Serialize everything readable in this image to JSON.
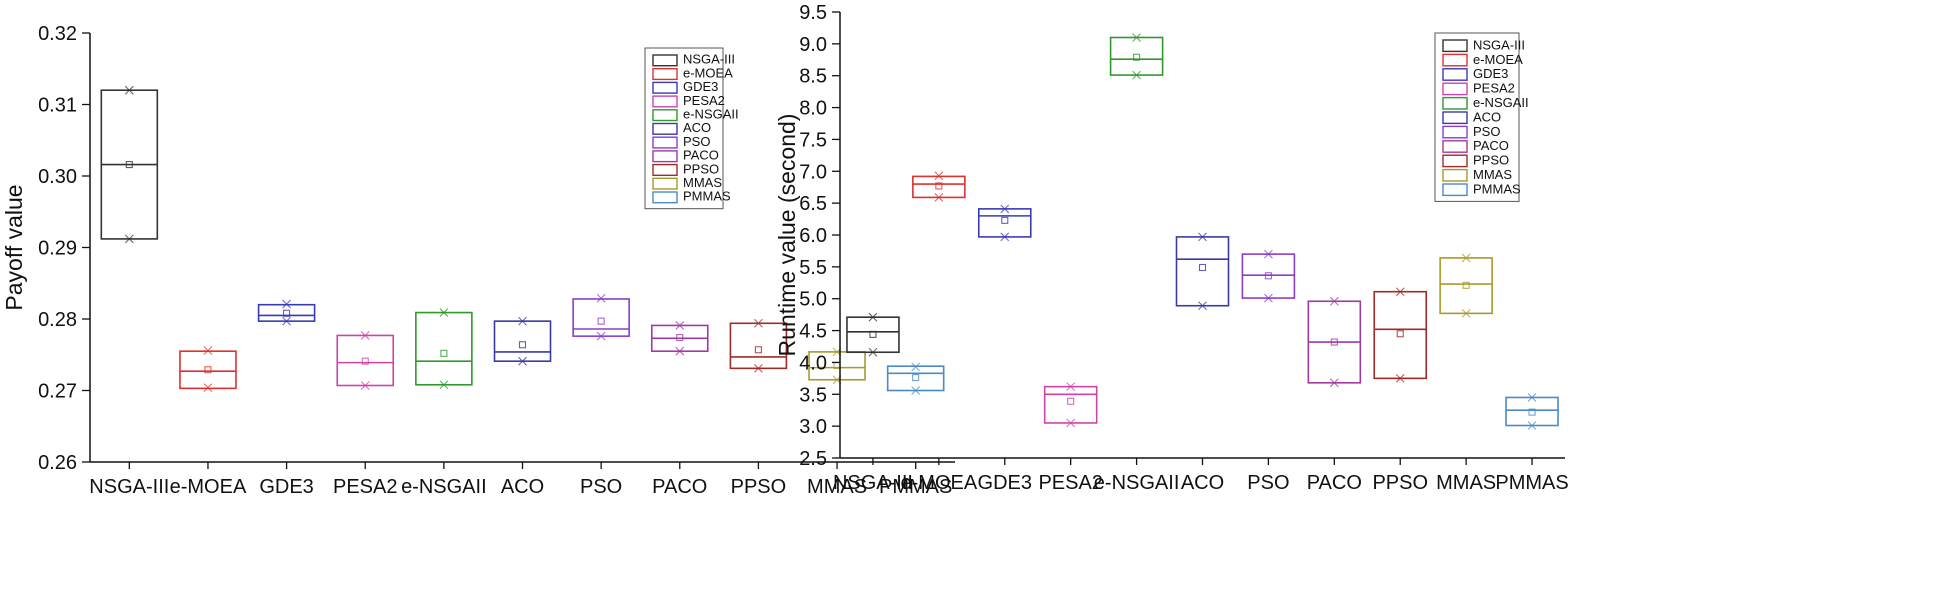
{
  "chart_data": [
    {
      "type": "box",
      "ylabel": "Payoff value",
      "xlabel": "",
      "ylim": [
        0.26,
        0.32
      ],
      "yticks": [
        "0.26",
        "0.27",
        "0.28",
        "0.29",
        "0.30",
        "0.31",
        "0.32"
      ],
      "legend_position": "top-right",
      "categories": [
        "NSGA-III",
        "e-MOEA",
        "GDE3",
        "PESA2",
        "e-NSGAII",
        "ACO",
        "PSO",
        "PACO",
        "PPSO",
        "MMAS",
        "PMMAS"
      ],
      "series": [
        {
          "name": "NSGA-III",
          "color": "#333333",
          "box_low": 0.2912,
          "box_high": 0.312,
          "median": 0.3016,
          "mean": 0.3016,
          "min": 0.2912,
          "max": 0.312
        },
        {
          "name": "e-MOEA",
          "color": "#e0302e",
          "box_low": 0.2703,
          "box_high": 0.2755,
          "median": 0.2727,
          "mean": 0.2729,
          "min": 0.2704,
          "max": 0.2756
        },
        {
          "name": "GDE3",
          "color": "#3a3ab8",
          "box_low": 0.2797,
          "box_high": 0.282,
          "median": 0.2805,
          "mean": 0.2808,
          "min": 0.2797,
          "max": 0.2821
        },
        {
          "name": "PESA2",
          "color": "#cc44aa",
          "box_low": 0.2707,
          "box_high": 0.2777,
          "median": 0.2739,
          "mean": 0.2741,
          "min": 0.2707,
          "max": 0.2777
        },
        {
          "name": "e-NSGAII",
          "color": "#2e9a2e",
          "box_low": 0.2708,
          "box_high": 0.2809,
          "median": 0.2741,
          "mean": 0.2752,
          "min": 0.2708,
          "max": 0.2809
        },
        {
          "name": "ACO",
          "color": "#3a3aa6",
          "box_low": 0.2741,
          "box_high": 0.2797,
          "median": 0.2754,
          "mean": 0.2764,
          "min": 0.2741,
          "max": 0.2797
        },
        {
          "name": "PSO",
          "color": "#8a3ec8",
          "box_low": 0.2776,
          "box_high": 0.2828,
          "median": 0.2786,
          "mean": 0.2797,
          "min": 0.2776,
          "max": 0.2829
        },
        {
          "name": "PACO",
          "color": "#a03aa0",
          "box_low": 0.2755,
          "box_high": 0.2791,
          "median": 0.2773,
          "mean": 0.2774,
          "min": 0.2755,
          "max": 0.2791
        },
        {
          "name": "PPSO",
          "color": "#a02a2a",
          "box_low": 0.2731,
          "box_high": 0.2794,
          "median": 0.2747,
          "mean": 0.2757,
          "min": 0.2731,
          "max": 0.2794
        },
        {
          "name": "MMAS",
          "color": "#a89a2a",
          "box_low": 0.2715,
          "box_high": 0.2754,
          "median": 0.2732,
          "mean": 0.2735,
          "min": 0.2715,
          "max": 0.2754
        },
        {
          "name": "PMMAS",
          "color": "#4a8ac8",
          "box_low": 0.27,
          "box_high": 0.2734,
          "median": 0.2724,
          "mean": 0.2718,
          "min": 0.27,
          "max": 0.2733
        }
      ]
    },
    {
      "type": "box",
      "ylabel": "Runtime value (second)",
      "xlabel": "",
      "ylim": [
        2.5,
        9.5
      ],
      "yticks": [
        "2.5",
        "3.0",
        "3.5",
        "4.0",
        "4.5",
        "5.0",
        "5.5",
        "6.0",
        "6.5",
        "7.0",
        "7.5",
        "8.0",
        "8.5",
        "9.0",
        "9.5"
      ],
      "legend_position": "top-right",
      "categories": [
        "NSGA-III",
        "e-MOEA",
        "GDE3",
        "PESA2",
        "e-NSGAII",
        "ACO",
        "PSO",
        "PACO",
        "PPSO",
        "MMAS",
        "PMMAS"
      ],
      "series": [
        {
          "name": "NSGA-III",
          "color": "#333333",
          "box_low": 4.16,
          "box_high": 4.71,
          "median": 4.48,
          "mean": 4.44,
          "min": 4.16,
          "max": 4.71
        },
        {
          "name": "e-MOEA",
          "color": "#e0302e",
          "box_low": 6.59,
          "box_high": 6.92,
          "median": 6.8,
          "mean": 6.77,
          "min": 6.59,
          "max": 6.93
        },
        {
          "name": "GDE3",
          "color": "#3a3ab8",
          "box_low": 5.97,
          "box_high": 6.41,
          "median": 6.3,
          "mean": 6.23,
          "min": 5.97,
          "max": 6.41
        },
        {
          "name": "PESA2",
          "color": "#cc44aa",
          "box_low": 3.05,
          "box_high": 3.62,
          "median": 3.5,
          "mean": 3.39,
          "min": 3.05,
          "max": 3.62
        },
        {
          "name": "e-NSGAII",
          "color": "#2e9a2e",
          "box_low": 8.51,
          "box_high": 9.1,
          "median": 8.76,
          "mean": 8.79,
          "min": 8.51,
          "max": 9.1
        },
        {
          "name": "ACO",
          "color": "#3a3aa6",
          "box_low": 4.89,
          "box_high": 5.97,
          "median": 5.62,
          "mean": 5.49,
          "min": 4.89,
          "max": 5.97
        },
        {
          "name": "PSO",
          "color": "#8a3ec8",
          "box_low": 5.01,
          "box_high": 5.7,
          "median": 5.37,
          "mean": 5.36,
          "min": 5.01,
          "max": 5.7
        },
        {
          "name": "PACO",
          "color": "#a03aa0",
          "box_low": 3.68,
          "box_high": 4.96,
          "median": 4.32,
          "mean": 4.32,
          "min": 3.68,
          "max": 4.96
        },
        {
          "name": "PPSO",
          "color": "#a02a2a",
          "box_low": 3.75,
          "box_high": 5.11,
          "median": 4.52,
          "mean": 4.45,
          "min": 3.75,
          "max": 5.11
        },
        {
          "name": "MMAS",
          "color": "#a89a2a",
          "box_low": 4.77,
          "box_high": 5.64,
          "median": 5.23,
          "mean": 5.21,
          "min": 4.77,
          "max": 5.64
        },
        {
          "name": "PMMAS",
          "color": "#4a8ac8",
          "box_low": 3.01,
          "box_high": 3.45,
          "median": 3.25,
          "mean": 3.22,
          "min": 3.01,
          "max": 3.45
        }
      ]
    }
  ]
}
